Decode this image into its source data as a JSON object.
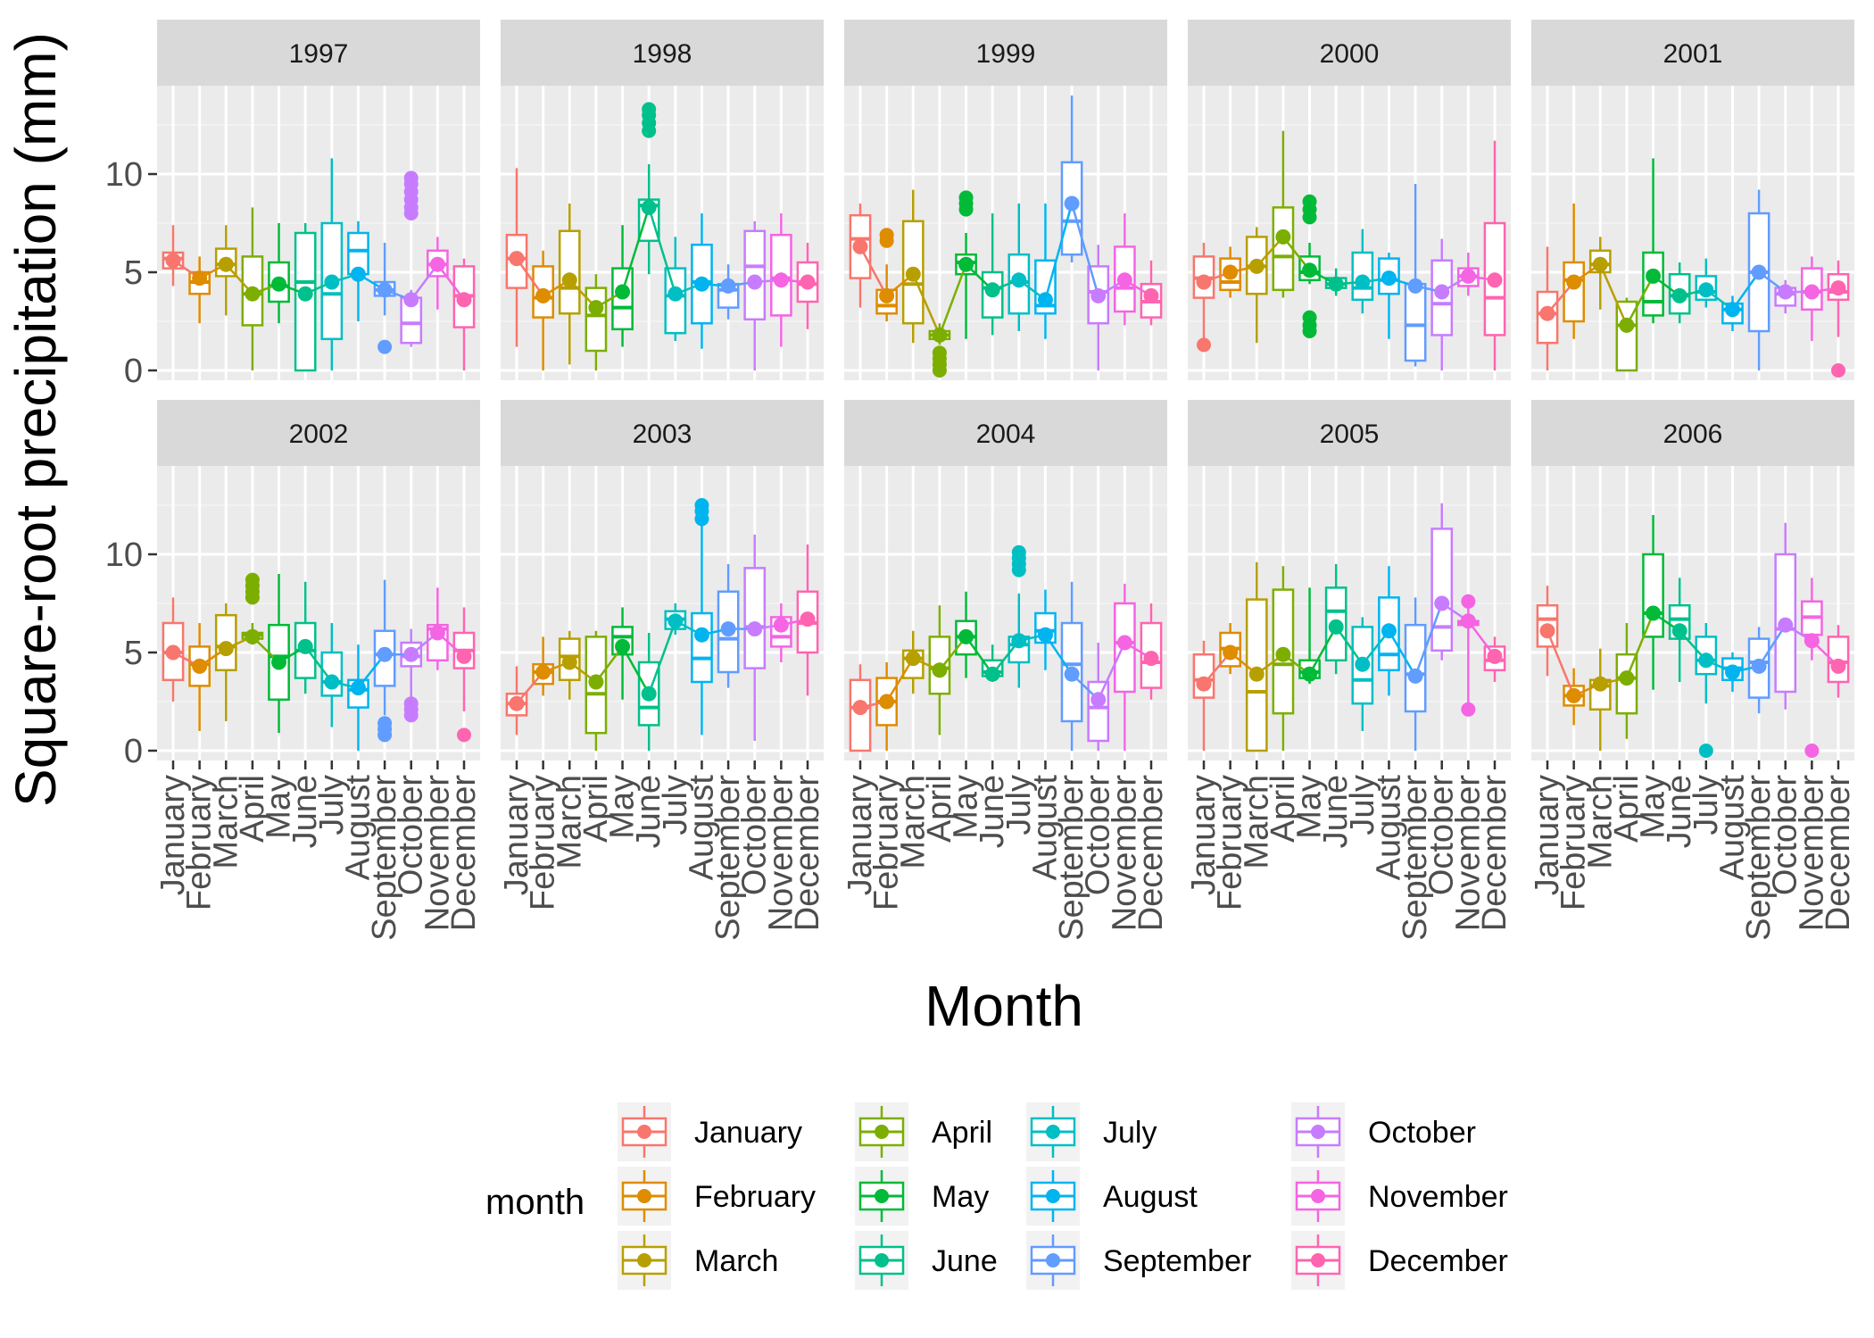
{
  "chart_data": {
    "type": "boxplot",
    "title": "",
    "xlabel": "Month",
    "ylabel": "Square-root precipitation (mm)",
    "ylim": [
      -0.5,
      14.5
    ],
    "yticks": [
      0,
      5,
      10
    ],
    "grid": true,
    "legend": {
      "title": "month",
      "position": "bottom",
      "columns": [
        [
          "January",
          "February",
          "March"
        ],
        [
          "April",
          "May",
          "June"
        ],
        [
          "July",
          "August",
          "September"
        ],
        [
          "October",
          "November",
          "December"
        ]
      ]
    },
    "months": [
      "January",
      "February",
      "March",
      "April",
      "May",
      "June",
      "July",
      "August",
      "September",
      "October",
      "November",
      "December"
    ],
    "colors": [
      "#F8766D",
      "#DE8C00",
      "#B79F00",
      "#7CAE00",
      "#00BA38",
      "#00C08B",
      "#00BFC4",
      "#00B4F0",
      "#619CFF",
      "#C77CFF",
      "#F564E3",
      "#FF64B0"
    ],
    "panels": [
      {
        "year": "1997",
        "means": [
          5.6,
          4.7,
          5.4,
          3.9,
          4.4,
          3.9,
          4.5,
          4.9,
          4.1,
          3.6,
          5.4,
          3.6
        ],
        "boxes": [
          [
            4.3,
            5.2,
            5.7,
            6.0,
            7.4
          ],
          [
            2.4,
            3.9,
            4.5,
            5.0,
            5.8
          ],
          [
            2.8,
            4.8,
            5.4,
            6.2,
            7.4
          ],
          [
            0,
            2.3,
            3.9,
            5.8,
            8.3
          ],
          [
            2.4,
            3.5,
            4.3,
            5.5,
            7.5
          ],
          [
            0,
            0,
            4.5,
            7.0,
            7.5
          ],
          [
            0,
            1.6,
            3.9,
            7.5,
            10.8
          ],
          [
            2.5,
            4.9,
            6.1,
            7.0,
            7.6
          ],
          [
            2.8,
            3.8,
            4.1,
            4.5,
            6.5
          ],
          [
            1.2,
            1.4,
            2.4,
            3.7,
            4.1
          ],
          [
            3.1,
            4.8,
            5.4,
            6.1,
            6.8
          ],
          [
            0,
            2.2,
            3.8,
            5.3,
            5.7
          ]
        ],
        "outliers": [
          [],
          [],
          [],
          [],
          [],
          [],
          [],
          [],
          [
            1.2
          ],
          [
            8.0,
            8.3,
            8.7,
            9.1,
            9.5,
            9.8
          ],
          [],
          []
        ]
      },
      {
        "year": "1998",
        "means": [
          5.7,
          3.8,
          4.6,
          3.2,
          4.0,
          8.3,
          3.9,
          4.4,
          4.3,
          4.5,
          4.6,
          4.5
        ],
        "boxes": [
          [
            1.2,
            4.2,
            5.7,
            6.9,
            10.3
          ],
          [
            0,
            2.7,
            3.7,
            5.3,
            6.1
          ],
          [
            0.3,
            2.9,
            4.2,
            7.1,
            8.5
          ],
          [
            0,
            1.0,
            2.8,
            4.2,
            4.9
          ],
          [
            1.2,
            2.1,
            3.2,
            5.2,
            7.4
          ],
          [
            4.9,
            6.6,
            8.4,
            8.7,
            10.5
          ],
          [
            1.5,
            1.9,
            3.8,
            5.2,
            6.8
          ],
          [
            1.1,
            2.4,
            4.5,
            6.4,
            8.0
          ],
          [
            2.6,
            3.2,
            4.1,
            4.4,
            5.4
          ],
          [
            0,
            2.6,
            5.3,
            7.1,
            7.6
          ],
          [
            1.2,
            2.8,
            4.7,
            6.9,
            8.0
          ],
          [
            2.1,
            3.5,
            4.4,
            5.5,
            6.5
          ]
        ],
        "outliers": [
          [],
          [],
          [],
          [],
          [],
          [
            12.2,
            12.6,
            13.0,
            13.3
          ],
          [],
          [],
          [],
          [],
          [],
          []
        ]
      },
      {
        "year": "1999",
        "means": [
          6.3,
          3.8,
          4.9,
          1.8,
          5.4,
          4.1,
          4.6,
          3.6,
          8.5,
          3.8,
          4.6,
          3.8
        ],
        "boxes": [
          [
            3.2,
            4.7,
            6.7,
            7.9,
            8.5
          ],
          [
            2.5,
            2.9,
            3.3,
            4.1,
            5.4
          ],
          [
            1.4,
            2.4,
            4.4,
            7.6,
            9.2
          ],
          [
            1.3,
            1.6,
            1.8,
            2.0,
            2.4
          ],
          [
            1.6,
            4.9,
            5.5,
            5.9,
            7.0
          ],
          [
            1.8,
            2.7,
            4.2,
            5.0,
            8.0
          ],
          [
            2.0,
            2.9,
            4.5,
            5.9,
            8.5
          ],
          [
            1.6,
            2.9,
            3.3,
            5.6,
            8.5
          ],
          [
            5.5,
            5.9,
            7.6,
            10.6,
            14.0
          ],
          [
            0,
            2.4,
            4.0,
            5.3,
            6.4
          ],
          [
            2.3,
            3.0,
            4.2,
            6.3,
            8.0
          ],
          [
            2.3,
            2.7,
            3.5,
            4.4,
            5.6
          ]
        ],
        "outliers": [
          [],
          [
            6.6,
            6.9
          ],
          [],
          [
            0,
            0.3,
            0.6,
            0.9
          ],
          [
            8.2,
            8.5,
            8.8
          ],
          [],
          [],
          [],
          [],
          [],
          [],
          []
        ]
      },
      {
        "year": "2000",
        "means": [
          4.5,
          5.0,
          5.3,
          6.8,
          5.1,
          4.4,
          4.5,
          4.7,
          4.3,
          4.0,
          4.8,
          4.6
        ],
        "boxes": [
          [
            1.2,
            3.7,
            4.7,
            5.8,
            6.5
          ],
          [
            3.7,
            4.1,
            4.5,
            5.7,
            6.3
          ],
          [
            1.4,
            3.9,
            5.3,
            6.8,
            7.3
          ],
          [
            3.7,
            4.1,
            5.8,
            8.3,
            12.2
          ],
          [
            4.4,
            4.6,
            5.0,
            5.8,
            6.5
          ],
          [
            3.8,
            4.2,
            4.4,
            4.7,
            5.2
          ],
          [
            2.9,
            3.6,
            4.2,
            6.0,
            7.2
          ],
          [
            1.6,
            3.9,
            4.6,
            5.7,
            6.0
          ],
          [
            0.2,
            0.5,
            2.3,
            4.4,
            9.5
          ],
          [
            0,
            1.8,
            3.4,
            5.6,
            6.7
          ],
          [
            3.8,
            4.3,
            4.8,
            5.2,
            6.0
          ],
          [
            0,
            1.8,
            3.7,
            7.5,
            11.7
          ]
        ],
        "outliers": [
          [
            1.3
          ],
          [],
          [],
          [],
          [
            2.0,
            2.3,
            2.7,
            7.8,
            8.2,
            8.6
          ],
          [],
          [],
          [],
          [],
          [],
          [],
          []
        ]
      },
      {
        "year": "2001",
        "means": [
          2.9,
          4.5,
          5.4,
          2.3,
          4.8,
          3.8,
          4.1,
          3.1,
          5.0,
          4.0,
          4.0,
          4.2
        ],
        "boxes": [
          [
            0,
            1.4,
            2.9,
            4.0,
            6.3
          ],
          [
            1.6,
            2.5,
            4.6,
            5.5,
            8.5
          ],
          [
            3.1,
            5.0,
            5.4,
            6.1,
            6.8
          ],
          [
            0,
            0,
            2.3,
            3.5,
            3.7
          ],
          [
            2.4,
            2.8,
            3.5,
            6.0,
            10.8
          ],
          [
            2.4,
            2.9,
            3.8,
            4.9,
            5.5
          ],
          [
            3.2,
            3.6,
            4.0,
            4.8,
            5.7
          ],
          [
            2.0,
            2.4,
            3.1,
            3.4,
            3.8
          ],
          [
            0,
            2.0,
            5.0,
            8.0,
            9.2
          ],
          [
            2.9,
            3.3,
            3.9,
            4.2,
            4.6
          ],
          [
            1.5,
            3.1,
            4.0,
            5.2,
            5.8
          ],
          [
            1.7,
            3.6,
            4.0,
            4.9,
            5.6
          ]
        ],
        "outliers": [
          [],
          [],
          [],
          [],
          [],
          [],
          [],
          [],
          [],
          [],
          [],
          [
            0
          ]
        ]
      },
      {
        "year": "2002",
        "means": [
          5.0,
          4.3,
          5.2,
          5.8,
          4.5,
          5.3,
          3.5,
          3.2,
          4.9,
          4.9,
          6.0,
          4.8
        ],
        "boxes": [
          [
            2.5,
            3.6,
            5.0,
            6.5,
            7.8
          ],
          [
            1.0,
            3.3,
            4.4,
            5.3,
            6.5
          ],
          [
            1.5,
            4.1,
            5.3,
            6.9,
            7.5
          ],
          [
            5.4,
            5.7,
            5.9,
            6.0,
            6.5
          ],
          [
            0.9,
            2.6,
            4.8,
            6.4,
            9.0
          ],
          [
            2.9,
            3.7,
            5.1,
            6.5,
            8.6
          ],
          [
            1.2,
            2.8,
            3.5,
            5.0,
            6.5
          ],
          [
            0,
            2.2,
            3.1,
            3.6,
            5.4
          ],
          [
            1.8,
            3.3,
            4.9,
            6.1,
            8.7
          ],
          [
            2.5,
            4.3,
            4.8,
            5.5,
            6.2
          ],
          [
            4.1,
            4.6,
            6.2,
            6.4,
            8.3
          ],
          [
            2.0,
            4.2,
            5.1,
            6.0,
            7.3
          ]
        ],
        "outliers": [
          [],
          [],
          [],
          [
            7.8,
            8.1,
            8.4,
            8.7
          ],
          [],
          [],
          [],
          [],
          [
            0.8,
            1.1,
            1.4
          ],
          [
            1.8,
            2.1,
            2.4
          ],
          [],
          [
            0.8
          ]
        ]
      },
      {
        "year": "2003",
        "means": [
          2.4,
          4.0,
          4.5,
          3.5,
          5.3,
          2.9,
          6.6,
          5.9,
          6.2,
          6.2,
          6.4,
          6.7
        ],
        "boxes": [
          [
            0.8,
            1.8,
            2.4,
            2.9,
            4.3
          ],
          [
            2.8,
            3.4,
            4.0,
            4.4,
            5.8
          ],
          [
            2.6,
            3.6,
            4.8,
            5.7,
            6.1
          ],
          [
            0,
            0.9,
            2.9,
            5.8,
            6.1
          ],
          [
            2.6,
            4.9,
            5.8,
            6.3,
            7.3
          ],
          [
            0,
            1.3,
            2.2,
            4.5,
            6.0
          ],
          [
            5.9,
            6.2,
            6.7,
            7.1,
            7.5
          ],
          [
            0.8,
            3.5,
            4.7,
            7.0,
            11.5
          ],
          [
            3.2,
            4.0,
            5.7,
            8.1,
            9.5
          ],
          [
            0.5,
            4.2,
            6.3,
            9.3,
            11.0
          ],
          [
            4.5,
            5.3,
            5.8,
            6.8,
            7.5
          ],
          [
            2.8,
            5.0,
            6.5,
            8.1,
            10.5
          ]
        ],
        "outliers": [
          [],
          [],
          [],
          [],
          [],
          [],
          [],
          [
            11.8,
            12.2,
            12.5
          ],
          [],
          [],
          [],
          []
        ]
      },
      {
        "year": "2004",
        "means": [
          2.2,
          2.5,
          4.7,
          4.1,
          5.8,
          3.9,
          5.6,
          5.9,
          3.9,
          2.6,
          5.5,
          4.7
        ],
        "boxes": [
          [
            0,
            0,
            2.2,
            3.6,
            4.4
          ],
          [
            0,
            1.3,
            2.5,
            3.7,
            4.5
          ],
          [
            2.9,
            3.7,
            4.7,
            5.1,
            6.1
          ],
          [
            0.8,
            2.9,
            4.2,
            5.8,
            7.4
          ],
          [
            3.7,
            4.9,
            5.8,
            6.6,
            8.1
          ],
          [
            3.5,
            3.8,
            4.0,
            4.6,
            5.4
          ],
          [
            3.2,
            4.5,
            5.4,
            5.8,
            8.0
          ],
          [
            4.1,
            5.5,
            6.1,
            7.0,
            8.2
          ],
          [
            0,
            1.5,
            4.4,
            6.5,
            8.6
          ],
          [
            0,
            0.5,
            2.2,
            3.5,
            5.5
          ],
          [
            0,
            3.0,
            5.5,
            7.5,
            8.5
          ],
          [
            2.6,
            3.2,
            4.5,
            6.5,
            7.5
          ]
        ],
        "outliers": [
          [],
          [],
          [],
          [],
          [],
          [],
          [
            9.2,
            9.5,
            9.8,
            10.1
          ],
          [],
          [],
          [],
          [],
          []
        ]
      },
      {
        "year": "2005",
        "means": [
          3.4,
          5.0,
          3.9,
          4.9,
          3.9,
          6.3,
          4.4,
          6.1,
          3.8,
          7.5,
          6.6,
          4.8
        ],
        "boxes": [
          [
            0,
            2.7,
            3.6,
            4.9,
            5.6
          ],
          [
            3.9,
            4.3,
            5.2,
            6.0,
            6.5
          ],
          [
            0,
            0,
            3.0,
            7.7,
            9.6
          ],
          [
            0,
            1.9,
            4.4,
            8.2,
            9.4
          ],
          [
            3.4,
            3.7,
            4.0,
            4.6,
            8.3
          ],
          [
            3.9,
            4.6,
            7.1,
            8.3,
            9.5
          ],
          [
            1.0,
            2.4,
            3.6,
            6.3,
            6.8
          ],
          [
            2.8,
            4.1,
            4.9,
            7.8,
            9.4
          ],
          [
            0,
            2.0,
            3.9,
            6.4,
            7.8
          ],
          [
            4.6,
            5.1,
            6.3,
            11.3,
            12.6
          ],
          [
            2.4,
            6.4,
            6.5,
            6.6,
            7.3
          ],
          [
            3.5,
            4.1,
            4.6,
            5.3,
            5.8
          ]
        ],
        "outliers": [
          [],
          [],
          [],
          [],
          [],
          [],
          [],
          [],
          [],
          [],
          [
            2.1,
            7.6
          ],
          []
        ]
      },
      {
        "year": "2006",
        "means": [
          6.1,
          2.8,
          3.4,
          3.7,
          7.0,
          6.1,
          4.6,
          4.0,
          4.3,
          6.4,
          5.6,
          4.3
        ],
        "boxes": [
          [
            3.8,
            5.3,
            6.7,
            7.4,
            8.4
          ],
          [
            1.3,
            2.3,
            2.8,
            3.3,
            4.2
          ],
          [
            0,
            2.1,
            3.3,
            3.6,
            5.2
          ],
          [
            0.6,
            1.9,
            3.7,
            4.9,
            6.5
          ],
          [
            3.1,
            5.8,
            7.0,
            10.0,
            12.0
          ],
          [
            3.5,
            5.7,
            6.7,
            7.4,
            8.8
          ],
          [
            2.4,
            3.9,
            4.6,
            5.8,
            6.5
          ],
          [
            3.0,
            3.6,
            4.2,
            4.7,
            5.0
          ],
          [
            1.9,
            2.7,
            4.5,
            5.7,
            6.3
          ],
          [
            2.1,
            3.0,
            6.2,
            10.0,
            11.6
          ],
          [
            4.6,
            5.9,
            6.8,
            7.6,
            8.8
          ],
          [
            2.7,
            3.5,
            4.5,
            5.8,
            6.4
          ]
        ],
        "outliers": [
          [],
          [],
          [],
          [],
          [],
          [],
          [
            0
          ],
          [],
          [],
          [],
          [
            0
          ],
          []
        ]
      }
    ]
  }
}
